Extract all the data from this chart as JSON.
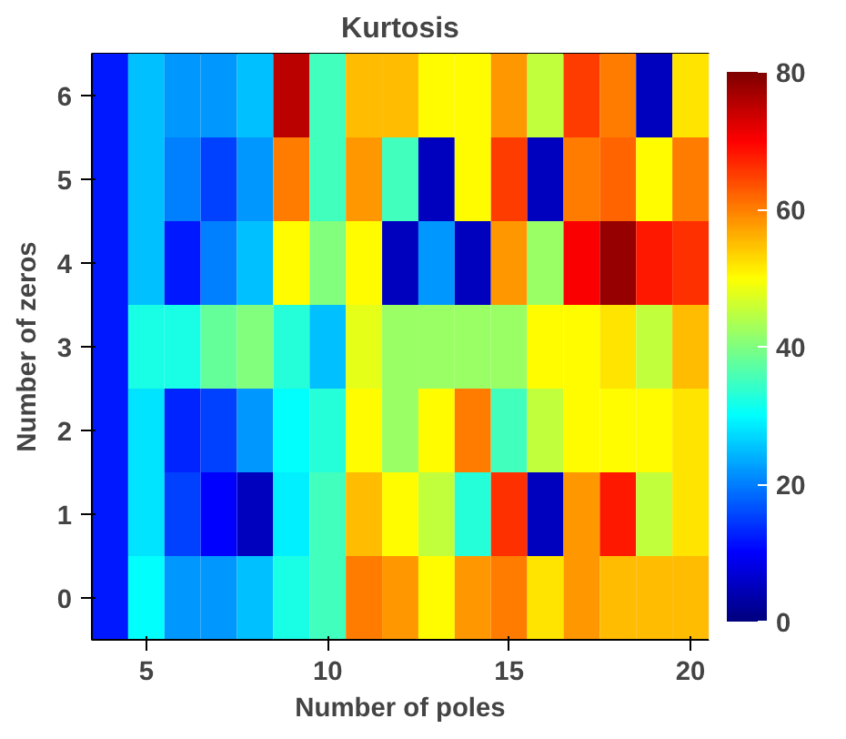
{
  "chart_data": {
    "type": "heatmap",
    "title": "Kurtosis",
    "xlabel": "Number of poles",
    "ylabel": "Number of zeros",
    "categories": [
      null,
      "5",
      null,
      null,
      null,
      null,
      "10",
      null,
      null,
      null,
      null,
      "15",
      null,
      null,
      null,
      null,
      "20"
    ],
    "y_categories": [
      "6",
      "5",
      "4",
      "3",
      "2",
      "1",
      "0"
    ],
    "cells": [
      [
        12,
        25,
        22,
        22,
        25,
        75,
        35,
        55,
        55,
        50,
        50,
        58,
        45,
        65,
        60,
        5,
        52
      ],
      [
        12,
        25,
        20,
        15,
        22,
        60,
        35,
        58,
        35,
        5,
        50,
        65,
        5,
        60,
        62,
        50,
        60
      ],
      [
        12,
        25,
        12,
        20,
        25,
        50,
        40,
        50,
        5,
        22,
        5,
        58,
        42,
        70,
        78,
        68,
        66
      ],
      [
        12,
        32,
        32,
        38,
        40,
        33,
        25,
        48,
        42,
        42,
        42,
        42,
        50,
        50,
        52,
        45,
        55
      ],
      [
        12,
        28,
        13,
        15,
        22,
        30,
        33,
        50,
        42,
        50,
        60,
        35,
        45,
        50,
        50,
        50,
        52
      ],
      [
        12,
        28,
        15,
        10,
        5,
        29,
        35,
        55,
        50,
        45,
        33,
        66,
        5,
        58,
        68,
        45,
        52
      ],
      [
        12,
        30,
        22,
        22,
        25,
        32,
        35,
        60,
        58,
        50,
        58,
        60,
        52,
        58,
        55,
        55,
        55
      ]
    ],
    "clim": [
      0,
      80
    ],
    "cticks": [
      0,
      20,
      40,
      60,
      80
    ]
  }
}
